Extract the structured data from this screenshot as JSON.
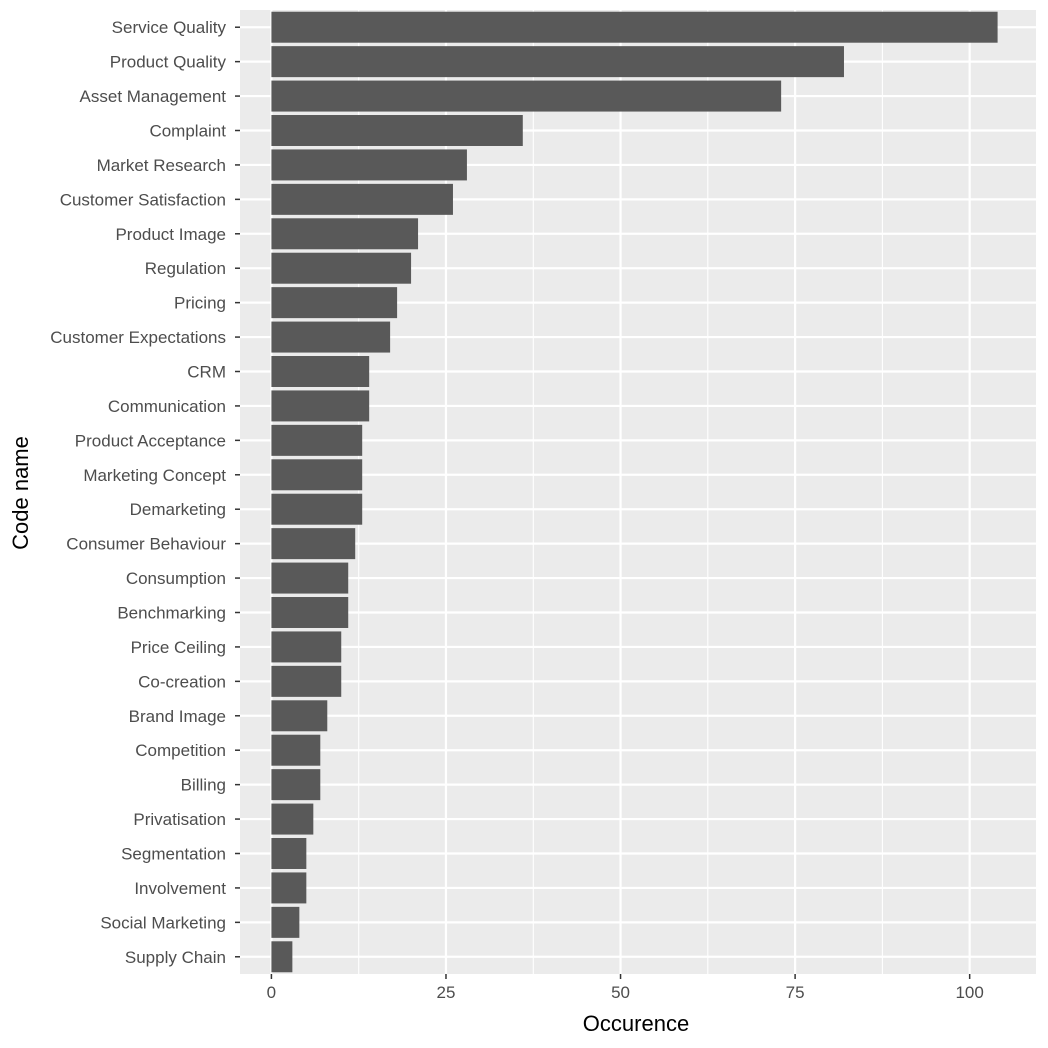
{
  "chart_data": {
    "type": "bar",
    "orientation": "horizontal",
    "xlabel": "Occurence",
    "ylabel": "Code name",
    "xlim": [
      -4.5,
      109.5
    ],
    "x_ticks": [
      0,
      25,
      50,
      75,
      100
    ],
    "grid": true,
    "colors": {
      "panel": "#ebebeb",
      "grid": "#ffffff",
      "bar": "#595959",
      "tick_text": "#4d4d4d",
      "tick_mark": "#333333"
    },
    "categories": [
      "Service Quality",
      "Product Quality",
      "Asset Management",
      "Complaint",
      "Market Research",
      "Customer Satisfaction",
      "Product Image",
      "Regulation",
      "Pricing",
      "Customer Expectations",
      "CRM",
      "Communication",
      "Product Acceptance",
      "Marketing Concept",
      "Demarketing",
      "Consumer Behaviour",
      "Consumption",
      "Benchmarking",
      "Price Ceiling",
      "Co-creation",
      "Brand Image",
      "Competition",
      "Billing",
      "Privatisation",
      "Segmentation",
      "Involvement",
      "Social Marketing",
      "Supply Chain"
    ],
    "values": [
      104,
      82,
      73,
      36,
      28,
      26,
      21,
      20,
      18,
      17,
      14,
      14,
      13,
      13,
      13,
      12,
      11,
      11,
      10,
      10,
      8,
      7,
      7,
      6,
      5,
      5,
      4,
      3
    ]
  }
}
